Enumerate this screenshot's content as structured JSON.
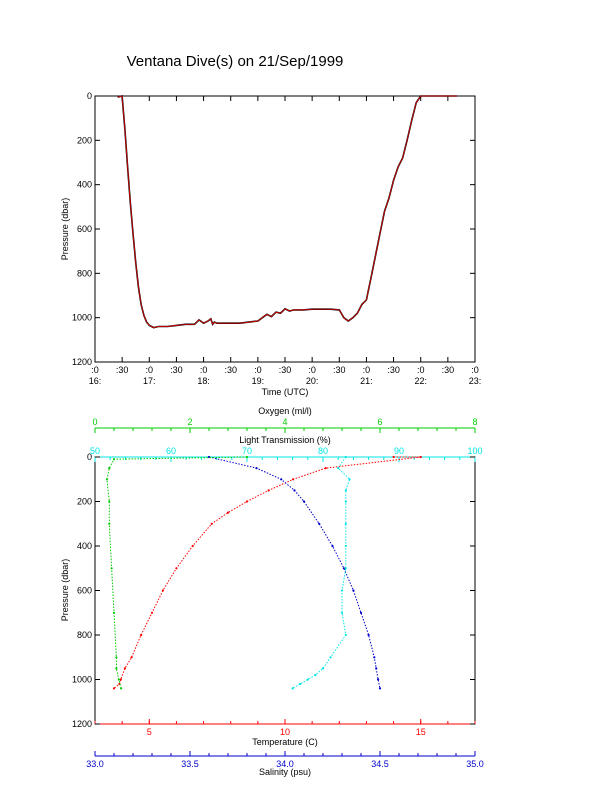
{
  "title": "Ventana Dive(s) on 21/Sep/1999",
  "colors": {
    "frame": "#000000",
    "temperature": "#ff0000",
    "salinity": "#0000cc",
    "oxygen": "#00cc00",
    "transmission": "#00e5e5",
    "depth_trace": "#000000",
    "depth_trace_overlay": "#ff0000"
  },
  "chart_data": [
    {
      "type": "line",
      "title": "Ventana Dive(s) on 21/Sep/1999",
      "xlabel": "Time (UTC)",
      "ylabel": "Pressure (dbar)",
      "xlim": [
        "16:00",
        "23:00"
      ],
      "ylim": [
        1200,
        0
      ],
      "y_reversed": true,
      "x_ticks": [
        ":0",
        ":30",
        ":0",
        ":30",
        ":0",
        ":30",
        ":0",
        ":30",
        ":0",
        ":30",
        ":0",
        ":30",
        ":0",
        ":30",
        ":0"
      ],
      "x_hour_labels": [
        "16:",
        "17:",
        "18:",
        "19:",
        "20:",
        "21:",
        "22:",
        "23:"
      ],
      "y_ticks": [
        "0",
        "200",
        "400",
        "600",
        "800",
        "1000",
        "1200"
      ],
      "y_tick_values": [
        0,
        200,
        400,
        600,
        800,
        1000,
        1200
      ],
      "series": [
        {
          "x": [
            "16:25",
            "16:30",
            "16:33",
            "16:36",
            "16:39",
            "16:42",
            "16:45",
            "16:48",
            "16:51",
            "16:54",
            "16:57",
            "17:00",
            "17:05",
            "17:10",
            "17:20",
            "17:30",
            "17:40",
            "17:50",
            "17:55",
            "18:00",
            "18:05",
            "18:08",
            "18:10",
            "18:12",
            "18:15",
            "18:20",
            "18:30",
            "18:40",
            "18:50",
            "19:00",
            "19:05",
            "19:10",
            "19:15",
            "19:20",
            "19:25",
            "19:30",
            "19:35",
            "19:40",
            "19:45",
            "19:50",
            "20:00",
            "20:10",
            "20:20",
            "20:30",
            "20:35",
            "20:40",
            "20:45",
            "20:50",
            "20:55",
            "21:00",
            "21:05",
            "21:10",
            "21:15",
            "21:20",
            "21:25",
            "21:30",
            "21:35",
            "21:40",
            "21:45",
            "21:50",
            "21:55",
            "22:00",
            "22:05",
            "22:10",
            "22:20",
            "22:30",
            "22:40"
          ],
          "y": [
            5,
            0,
            150,
            320,
            480,
            620,
            750,
            860,
            940,
            990,
            1020,
            1035,
            1045,
            1040,
            1040,
            1035,
            1030,
            1030,
            1010,
            1025,
            1015,
            1005,
            1030,
            1020,
            1025,
            1025,
            1025,
            1025,
            1020,
            1015,
            1000,
            985,
            995,
            975,
            980,
            960,
            970,
            965,
            965,
            965,
            962,
            962,
            962,
            965,
            1000,
            1015,
            1000,
            980,
            940,
            920,
            820,
            720,
            620,
            520,
            460,
            380,
            320,
            280,
            200,
            110,
            30,
            0,
            0,
            0,
            0,
            0,
            0
          ]
        }
      ]
    },
    {
      "type": "scatter",
      "ylabel": "Pressure (dbar)",
      "ylim": [
        1200,
        0
      ],
      "y_reversed": true,
      "y_ticks": [
        "0",
        "200",
        "400",
        "600",
        "800",
        "1000",
        "1200"
      ],
      "y_tick_values": [
        0,
        200,
        400,
        600,
        800,
        1000,
        1200
      ],
      "axes": {
        "oxygen": {
          "label": "Oxygen (ml/l)",
          "lim": [
            0,
            8
          ],
          "ticks": [
            "0",
            "2",
            "4",
            "6",
            "8"
          ],
          "tick_values": [
            0,
            2,
            4,
            6,
            8
          ],
          "position": "top"
        },
        "transmission": {
          "label": "Light Transmission (%)",
          "lim": [
            50,
            100
          ],
          "ticks": [
            "50",
            "60",
            "70",
            "80",
            "90",
            "100"
          ],
          "tick_values": [
            50,
            60,
            70,
            80,
            90,
            100
          ],
          "position": "top"
        },
        "temperature": {
          "label": "Temperature (C)",
          "lim": [
            3,
            17
          ],
          "ticks": [
            "5",
            "10",
            "15"
          ],
          "tick_values": [
            5,
            10,
            15
          ],
          "position": "bottom"
        },
        "salinity": {
          "label": "Salinity (psu)",
          "lim": [
            33.0,
            35.0
          ],
          "ticks": [
            "33.0",
            "33.5",
            "34.0",
            "34.5",
            "35.0"
          ],
          "tick_values": [
            33.0,
            33.5,
            34.0,
            34.5,
            35.0
          ],
          "position": "bottom"
        }
      },
      "series": [
        {
          "axis": "temperature",
          "pressure": [
            0,
            0,
            50,
            100,
            150,
            200,
            250,
            300,
            400,
            500,
            600,
            700,
            800,
            900,
            950,
            1000,
            1020,
            1040
          ],
          "value": [
            14.0,
            15.0,
            11.5,
            10.3,
            9.4,
            8.6,
            7.9,
            7.3,
            6.6,
            6.0,
            5.5,
            5.1,
            4.7,
            4.35,
            4.1,
            3.95,
            3.9,
            3.7
          ]
        },
        {
          "axis": "salinity",
          "pressure": [
            0,
            50,
            100,
            150,
            200,
            300,
            400,
            500,
            600,
            700,
            800,
            900,
            950,
            1000,
            1040
          ],
          "value": [
            33.6,
            33.85,
            33.98,
            34.05,
            34.1,
            34.18,
            34.25,
            34.31,
            34.36,
            34.4,
            34.44,
            34.47,
            34.48,
            34.49,
            34.5
          ]
        },
        {
          "axis": "oxygen",
          "pressure": [
            0,
            10,
            50,
            100,
            200,
            300,
            500,
            700,
            900,
            950,
            1000,
            1040
          ],
          "value": [
            3.2,
            0.4,
            0.3,
            0.25,
            0.3,
            0.3,
            0.35,
            0.4,
            0.45,
            0.45,
            0.5,
            0.55
          ]
        },
        {
          "axis": "transmission",
          "pressure": [
            0,
            50,
            100,
            150,
            200,
            300,
            400,
            500,
            600,
            700,
            800,
            900,
            950,
            980,
            1000,
            1020,
            1040
          ],
          "value": [
            83,
            82,
            83.5,
            83,
            83,
            83,
            83,
            83,
            82.5,
            82.5,
            83,
            81,
            80,
            79,
            78,
            77,
            76
          ]
        }
      ]
    }
  ]
}
